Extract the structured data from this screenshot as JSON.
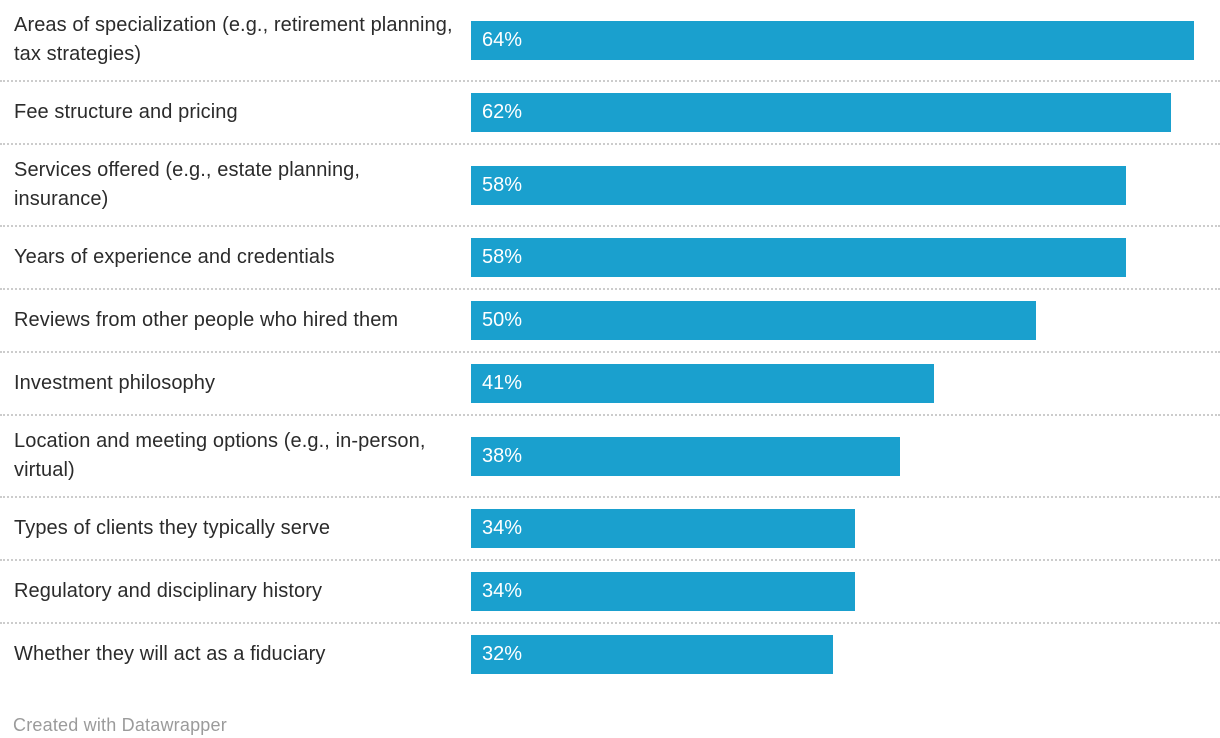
{
  "chart_data": {
    "type": "bar",
    "orientation": "horizontal",
    "title": "",
    "xlabel": "",
    "ylabel": "",
    "categories": [
      "Areas of specialization (e.g., retirement planning, tax strategies)",
      "Fee structure and pricing",
      "Services offered (e.g., estate planning, insurance)",
      "Years of experience and credentials",
      "Reviews from other people who hired them",
      "Investment philosophy",
      "Location and meeting options (e.g., in-person, virtual)",
      "Types of clients they typically serve",
      "Regulatory and disciplinary history",
      "Whether they will act as a fiduciary"
    ],
    "values": [
      64,
      62,
      58,
      58,
      50,
      41,
      38,
      34,
      34,
      32
    ],
    "value_suffix": "%",
    "xlim": [
      0,
      64
    ],
    "grid": "off",
    "legend": "none",
    "bar_color": "#1aa0ce",
    "value_label_color": "#ffffff",
    "separator_color": "#cccccc",
    "label_color": "#2b2b2b"
  },
  "footer": {
    "attribution": "Created with Datawrapper"
  }
}
